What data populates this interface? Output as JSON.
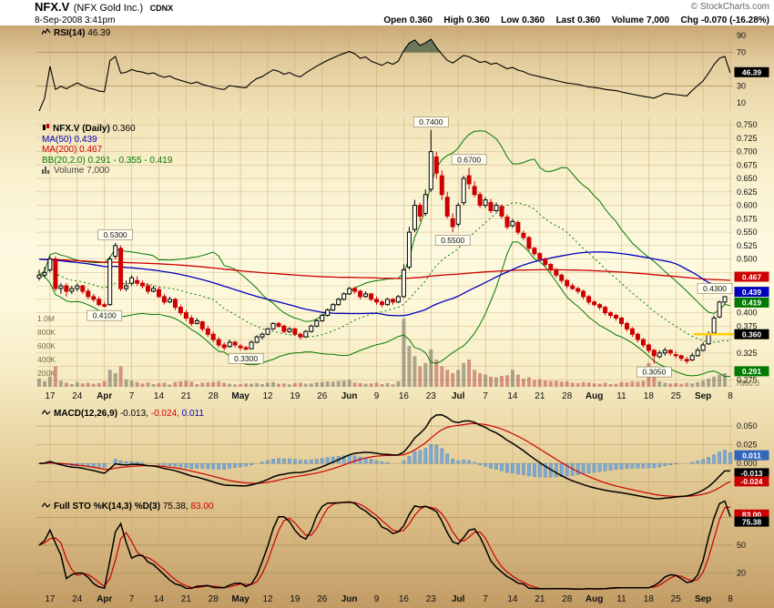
{
  "header": {
    "symbol": "NFX.V",
    "company": "(NFX Gold Inc.)",
    "exchange": "CDNX",
    "datetime": "8-Sep-2008 3:41pm",
    "copyright": "© StockCharts.com",
    "quote": [
      {
        "label": "Open",
        "value": "0.360"
      },
      {
        "label": "High",
        "value": "0.360"
      },
      {
        "label": "Low",
        "value": "0.360"
      },
      {
        "label": "Last",
        "value": "0.360"
      },
      {
        "label": "Volume",
        "value": "7,000"
      },
      {
        "label": "Chg",
        "value": "-0.070 (-16.28%)"
      }
    ]
  },
  "legends": {
    "rsi": {
      "name": "RSI(14)",
      "value": "46.39"
    },
    "main": {
      "symbol": "NFX.V (Daily)",
      "price": "0.360",
      "ma50": "MA(50) 0.439",
      "ma200": "MA(200) 0.467",
      "bb": "BB(20,2.0) 0.291 - 0.355 - 0.419",
      "volume": "Volume 7,000"
    },
    "macd": {
      "name": "MACD(12,26,9)",
      "macd": "-0.013,",
      "signal": "-0.024,",
      "hist": "0.011"
    },
    "sto": {
      "name": "Full STO %K(14,3) %D(3)",
      "k": "75.38,",
      "d": "83.00"
    }
  },
  "chart_data": {
    "type": "candlestick",
    "title": "NFX.V (NFX Gold Inc.) CDNX Daily",
    "date_range": "17-Mar-2008 to 8-Sep-2008",
    "x_ticks": [
      {
        "i": 2,
        "label": "17"
      },
      {
        "i": 7,
        "label": "24"
      },
      {
        "i": 12,
        "label": "Apr"
      },
      {
        "i": 17,
        "label": "7"
      },
      {
        "i": 22,
        "label": "14"
      },
      {
        "i": 27,
        "label": "21"
      },
      {
        "i": 32,
        "label": "28"
      },
      {
        "i": 37,
        "label": "May"
      },
      {
        "i": 42,
        "label": "12"
      },
      {
        "i": 47,
        "label": "19"
      },
      {
        "i": 52,
        "label": "26"
      },
      {
        "i": 57,
        "label": "Jun"
      },
      {
        "i": 62,
        "label": "9"
      },
      {
        "i": 67,
        "label": "16"
      },
      {
        "i": 72,
        "label": "23"
      },
      {
        "i": 77,
        "label": "Jul"
      },
      {
        "i": 82,
        "label": "7"
      },
      {
        "i": 87,
        "label": "14"
      },
      {
        "i": 92,
        "label": "21"
      },
      {
        "i": 97,
        "label": "28"
      },
      {
        "i": 102,
        "label": "Aug"
      },
      {
        "i": 107,
        "label": "11"
      },
      {
        "i": 112,
        "label": "18"
      },
      {
        "i": 117,
        "label": "25"
      },
      {
        "i": 122,
        "label": "Sep"
      },
      {
        "i": 127,
        "label": "8"
      }
    ],
    "candles": [
      [
        0.465,
        0.48,
        0.46,
        0.47,
        120
      ],
      [
        0.47,
        0.485,
        0.465,
        0.475,
        80
      ],
      [
        0.48,
        0.505,
        0.475,
        0.5,
        150
      ],
      [
        0.5,
        0.505,
        0.44,
        0.445,
        300
      ],
      [
        0.445,
        0.455,
        0.435,
        0.45,
        90
      ],
      [
        0.45,
        0.455,
        0.43,
        0.44,
        60
      ],
      [
        0.44,
        0.45,
        0.435,
        0.445,
        40
      ],
      [
        0.445,
        0.455,
        0.44,
        0.45,
        70
      ],
      [
        0.45,
        0.452,
        0.435,
        0.44,
        50
      ],
      [
        0.44,
        0.445,
        0.425,
        0.43,
        60
      ],
      [
        0.43,
        0.435,
        0.42,
        0.425,
        45
      ],
      [
        0.425,
        0.43,
        0.412,
        0.415,
        55
      ],
      [
        0.415,
        0.42,
        0.41,
        0.412,
        80
      ],
      [
        0.415,
        0.505,
        0.413,
        0.5,
        250
      ],
      [
        0.505,
        0.53,
        0.5,
        0.525,
        200
      ],
      [
        0.52,
        0.525,
        0.44,
        0.445,
        300
      ],
      [
        0.445,
        0.46,
        0.44,
        0.45,
        110
      ],
      [
        0.455,
        0.47,
        0.45,
        0.465,
        90
      ],
      [
        0.46,
        0.468,
        0.45,
        0.455,
        70
      ],
      [
        0.455,
        0.46,
        0.445,
        0.45,
        50
      ],
      [
        0.45,
        0.455,
        0.435,
        0.44,
        65
      ],
      [
        0.44,
        0.45,
        0.438,
        0.445,
        40
      ],
      [
        0.443,
        0.448,
        0.428,
        0.43,
        55
      ],
      [
        0.43,
        0.435,
        0.415,
        0.42,
        60
      ],
      [
        0.42,
        0.43,
        0.418,
        0.425,
        35
      ],
      [
        0.425,
        0.428,
        0.405,
        0.41,
        70
      ],
      [
        0.41,
        0.415,
        0.395,
        0.4,
        80
      ],
      [
        0.4,
        0.405,
        0.385,
        0.39,
        90
      ],
      [
        0.39,
        0.395,
        0.375,
        0.38,
        75
      ],
      [
        0.38,
        0.39,
        0.378,
        0.385,
        40
      ],
      [
        0.383,
        0.385,
        0.365,
        0.37,
        60
      ],
      [
        0.37,
        0.375,
        0.355,
        0.36,
        65
      ],
      [
        0.36,
        0.365,
        0.345,
        0.35,
        70
      ],
      [
        0.35,
        0.355,
        0.335,
        0.34,
        80
      ],
      [
        0.34,
        0.345,
        0.33,
        0.335,
        60
      ],
      [
        0.337,
        0.35,
        0.335,
        0.345,
        45
      ],
      [
        0.345,
        0.348,
        0.335,
        0.34,
        35
      ],
      [
        0.338,
        0.342,
        0.33,
        0.335,
        40
      ],
      [
        0.335,
        0.338,
        0.33,
        0.332,
        50
      ],
      [
        0.333,
        0.348,
        0.332,
        0.345,
        45
      ],
      [
        0.345,
        0.358,
        0.343,
        0.355,
        55
      ],
      [
        0.355,
        0.363,
        0.35,
        0.36,
        40
      ],
      [
        0.36,
        0.372,
        0.358,
        0.37,
        60
      ],
      [
        0.37,
        0.382,
        0.368,
        0.38,
        70
      ],
      [
        0.38,
        0.383,
        0.372,
        0.375,
        45
      ],
      [
        0.375,
        0.378,
        0.362,
        0.365,
        50
      ],
      [
        0.365,
        0.373,
        0.362,
        0.37,
        35
      ],
      [
        0.37,
        0.372,
        0.358,
        0.36,
        55
      ],
      [
        0.36,
        0.363,
        0.35,
        0.355,
        60
      ],
      [
        0.355,
        0.368,
        0.353,
        0.365,
        45
      ],
      [
        0.365,
        0.378,
        0.363,
        0.375,
        50
      ],
      [
        0.375,
        0.388,
        0.373,
        0.385,
        65
      ],
      [
        0.385,
        0.398,
        0.383,
        0.395,
        70
      ],
      [
        0.395,
        0.408,
        0.393,
        0.405,
        80
      ],
      [
        0.405,
        0.418,
        0.403,
        0.415,
        75
      ],
      [
        0.415,
        0.428,
        0.413,
        0.425,
        85
      ],
      [
        0.425,
        0.438,
        0.423,
        0.435,
        90
      ],
      [
        0.435,
        0.448,
        0.433,
        0.445,
        100
      ],
      [
        0.445,
        0.448,
        0.435,
        0.44,
        60
      ],
      [
        0.44,
        0.443,
        0.425,
        0.43,
        55
      ],
      [
        0.43,
        0.44,
        0.428,
        0.435,
        45
      ],
      [
        0.435,
        0.437,
        0.422,
        0.425,
        50
      ],
      [
        0.425,
        0.43,
        0.415,
        0.42,
        60
      ],
      [
        0.42,
        0.423,
        0.41,
        0.415,
        40
      ],
      [
        0.415,
        0.428,
        0.413,
        0.425,
        55
      ],
      [
        0.425,
        0.427,
        0.415,
        0.42,
        35
      ],
      [
        0.42,
        0.433,
        0.418,
        0.43,
        80
      ],
      [
        0.43,
        0.49,
        0.428,
        0.48,
        1000
      ],
      [
        0.485,
        0.56,
        0.48,
        0.55,
        600
      ],
      [
        0.555,
        0.61,
        0.55,
        0.6,
        450
      ],
      [
        0.6,
        0.605,
        0.57,
        0.58,
        300
      ],
      [
        0.585,
        0.63,
        0.58,
        0.62,
        350
      ],
      [
        0.63,
        0.74,
        0.625,
        0.7,
        550
      ],
      [
        0.69,
        0.7,
        0.65,
        0.66,
        400
      ],
      [
        0.655,
        0.665,
        0.61,
        0.62,
        300
      ],
      [
        0.615,
        0.625,
        0.575,
        0.58,
        250
      ],
      [
        0.575,
        0.585,
        0.55,
        0.56,
        200
      ],
      [
        0.565,
        0.605,
        0.56,
        0.6,
        250
      ],
      [
        0.605,
        0.655,
        0.6,
        0.65,
        350
      ],
      [
        0.655,
        0.67,
        0.63,
        0.64,
        400
      ],
      [
        0.635,
        0.645,
        0.615,
        0.62,
        250
      ],
      [
        0.62,
        0.625,
        0.595,
        0.6,
        200
      ],
      [
        0.6,
        0.615,
        0.595,
        0.61,
        180
      ],
      [
        0.605,
        0.612,
        0.585,
        0.59,
        150
      ],
      [
        0.59,
        0.605,
        0.588,
        0.6,
        140
      ],
      [
        0.598,
        0.602,
        0.575,
        0.58,
        160
      ],
      [
        0.578,
        0.583,
        0.555,
        0.56,
        170
      ],
      [
        0.562,
        0.575,
        0.558,
        0.57,
        250
      ],
      [
        0.568,
        0.572,
        0.545,
        0.55,
        180
      ],
      [
        0.548,
        0.553,
        0.535,
        0.54,
        120
      ],
      [
        0.54,
        0.543,
        0.515,
        0.52,
        140
      ],
      [
        0.52,
        0.523,
        0.505,
        0.51,
        100
      ],
      [
        0.51,
        0.513,
        0.495,
        0.5,
        110
      ],
      [
        0.5,
        0.503,
        0.485,
        0.49,
        95
      ],
      [
        0.49,
        0.493,
        0.475,
        0.48,
        85
      ],
      [
        0.48,
        0.483,
        0.465,
        0.47,
        90
      ],
      [
        0.47,
        0.473,
        0.455,
        0.46,
        75
      ],
      [
        0.46,
        0.463,
        0.445,
        0.45,
        80
      ],
      [
        0.45,
        0.455,
        0.442,
        0.445,
        60
      ],
      [
        0.445,
        0.448,
        0.435,
        0.44,
        55
      ],
      [
        0.44,
        0.443,
        0.425,
        0.43,
        70
      ],
      [
        0.43,
        0.433,
        0.415,
        0.42,
        65
      ],
      [
        0.42,
        0.423,
        0.412,
        0.415,
        50
      ],
      [
        0.415,
        0.418,
        0.405,
        0.41,
        45
      ],
      [
        0.41,
        0.413,
        0.395,
        0.4,
        60
      ],
      [
        0.4,
        0.403,
        0.39,
        0.395,
        40
      ],
      [
        0.395,
        0.398,
        0.385,
        0.39,
        45
      ],
      [
        0.39,
        0.393,
        0.375,
        0.38,
        70
      ],
      [
        0.38,
        0.383,
        0.365,
        0.37,
        65
      ],
      [
        0.37,
        0.373,
        0.355,
        0.36,
        80
      ],
      [
        0.36,
        0.363,
        0.345,
        0.35,
        75
      ],
      [
        0.35,
        0.353,
        0.335,
        0.34,
        90
      ],
      [
        0.34,
        0.343,
        0.325,
        0.33,
        350
      ],
      [
        0.33,
        0.333,
        0.305,
        0.32,
        150
      ],
      [
        0.318,
        0.33,
        0.315,
        0.325,
        80
      ],
      [
        0.325,
        0.335,
        0.32,
        0.33,
        60
      ],
      [
        0.33,
        0.332,
        0.32,
        0.325,
        50
      ],
      [
        0.322,
        0.328,
        0.315,
        0.32,
        55
      ],
      [
        0.32,
        0.322,
        0.31,
        0.315,
        45
      ],
      [
        0.313,
        0.318,
        0.305,
        0.31,
        60
      ],
      [
        0.312,
        0.325,
        0.31,
        0.32,
        50
      ],
      [
        0.32,
        0.335,
        0.318,
        0.33,
        70
      ],
      [
        0.33,
        0.345,
        0.328,
        0.34,
        90
      ],
      [
        0.342,
        0.365,
        0.34,
        0.36,
        120
      ],
      [
        0.362,
        0.395,
        0.36,
        0.39,
        150
      ],
      [
        0.392,
        0.422,
        0.39,
        0.42,
        180
      ],
      [
        0.42,
        0.43,
        0.415,
        0.43,
        200
      ],
      [
        0.36,
        0.36,
        0.36,
        0.36,
        7
      ]
    ],
    "panels": {
      "rsi": {
        "ylim": [
          0,
          100
        ],
        "ticks": [
          90,
          70,
          30,
          10
        ],
        "grid": [
          70,
          30
        ],
        "period": 14,
        "last": 46.39,
        "highlights": [
          {
            "v": 46.39,
            "label": "46.39",
            "color": "#000000"
          }
        ]
      },
      "price": {
        "ylim": [
          0.262,
          0.762
        ],
        "tick_min": 0.275,
        "tick_max": 0.75,
        "tick_step": 0.025,
        "last_price": 0.36,
        "highlights": [
          {
            "v": 0.467,
            "label": "0.467",
            "color": "#CC0000"
          },
          {
            "v": 0.439,
            "label": "0.439",
            "color": "#0000BB"
          },
          {
            "v": 0.419,
            "label": "0.419",
            "color": "#007A00"
          },
          {
            "v": 0.36,
            "label": "0.360",
            "color": "#000000"
          },
          {
            "v": 0.291,
            "label": "0.291",
            "color": "#007A00"
          }
        ],
        "annotations": [
          {
            "i": 12,
            "text": "0.4100",
            "side": "low"
          },
          {
            "i": 14,
            "text": "0.5300",
            "side": "high"
          },
          {
            "i": 38,
            "text": "0.3300",
            "side": "low"
          },
          {
            "i": 72,
            "text": "0.7400",
            "side": "high"
          },
          {
            "i": 76,
            "text": "0.5500",
            "side": "low"
          },
          {
            "i": 79,
            "text": "0.6700",
            "side": "high"
          },
          {
            "i": 113,
            "text": "0.3050",
            "side": "low"
          },
          {
            "i": 126,
            "text": "0.4300",
            "side": "high"
          }
        ],
        "volume_axis": [
          {
            "v": 1000,
            "label": "1.0M"
          },
          {
            "v": 800,
            "label": "800K"
          },
          {
            "v": 600,
            "label": "600K"
          },
          {
            "v": 400,
            "label": "400K"
          },
          {
            "v": 200,
            "label": "200K"
          }
        ],
        "volume_last_label": "7000.0",
        "ma": [
          {
            "period": 50,
            "color": "#0000BB",
            "last": 0.439
          },
          {
            "period": 200,
            "color": "#CC0000",
            "last": 0.467
          }
        ],
        "bb": {
          "period": 20,
          "stdev": 2.0,
          "lower": 0.291,
          "mid": 0.355,
          "upper": 0.419
        }
      },
      "macd": {
        "params": [
          12,
          26,
          9
        ],
        "ylim": [
          -0.0375,
          0.0745
        ],
        "ticks": [
          {
            "v": 0.05,
            "label": "0.050"
          },
          {
            "v": 0.025,
            "label": "0.025"
          },
          {
            "v": 0.0,
            "label": "0.000"
          },
          {
            "v": -0.025,
            "label": "-0.025"
          }
        ],
        "last": {
          "macd": -0.013,
          "signal": -0.024,
          "hist": 0.011
        },
        "highlights": [
          {
            "v": 0.011,
            "label": "0.011",
            "color": "#3366BB"
          },
          {
            "v": -0.013,
            "label": "-0.013",
            "color": "#000000"
          },
          {
            "v": -0.024,
            "label": "-0.024",
            "color": "#CC0000"
          }
        ]
      },
      "sto": {
        "params": "%K(14,3) %D(3)",
        "ylim": [
          0,
          100
        ],
        "ticks": [
          {
            "v": 80,
            "label": "80"
          },
          {
            "v": 50,
            "label": "50"
          },
          {
            "v": 20,
            "label": "20"
          }
        ],
        "last": {
          "k": 75.38,
          "d": 83.0
        },
        "highlights": [
          {
            "v": 83.0,
            "label": "83.00",
            "color": "#CC0000"
          },
          {
            "v": 75.38,
            "label": "75.38",
            "color": "#000000"
          }
        ]
      }
    },
    "colors": {
      "grid": "#C9A870",
      "up": "#000000",
      "down": "#CC0000",
      "ma50": "#0000BB",
      "ma200": "#CC0000",
      "bb": "#007A00",
      "volume": "#6E6A5E",
      "volume_down": "#B84848",
      "rsi": "#000000",
      "rsi_fill": "#5F7052",
      "macd": "#000000",
      "signal": "#CC0000",
      "hist": "#73A5D8",
      "hist_edge": "#4A7FB5",
      "stoK": "#000000",
      "stoD": "#CC0000",
      "last_marker": "#FFCC00"
    }
  }
}
